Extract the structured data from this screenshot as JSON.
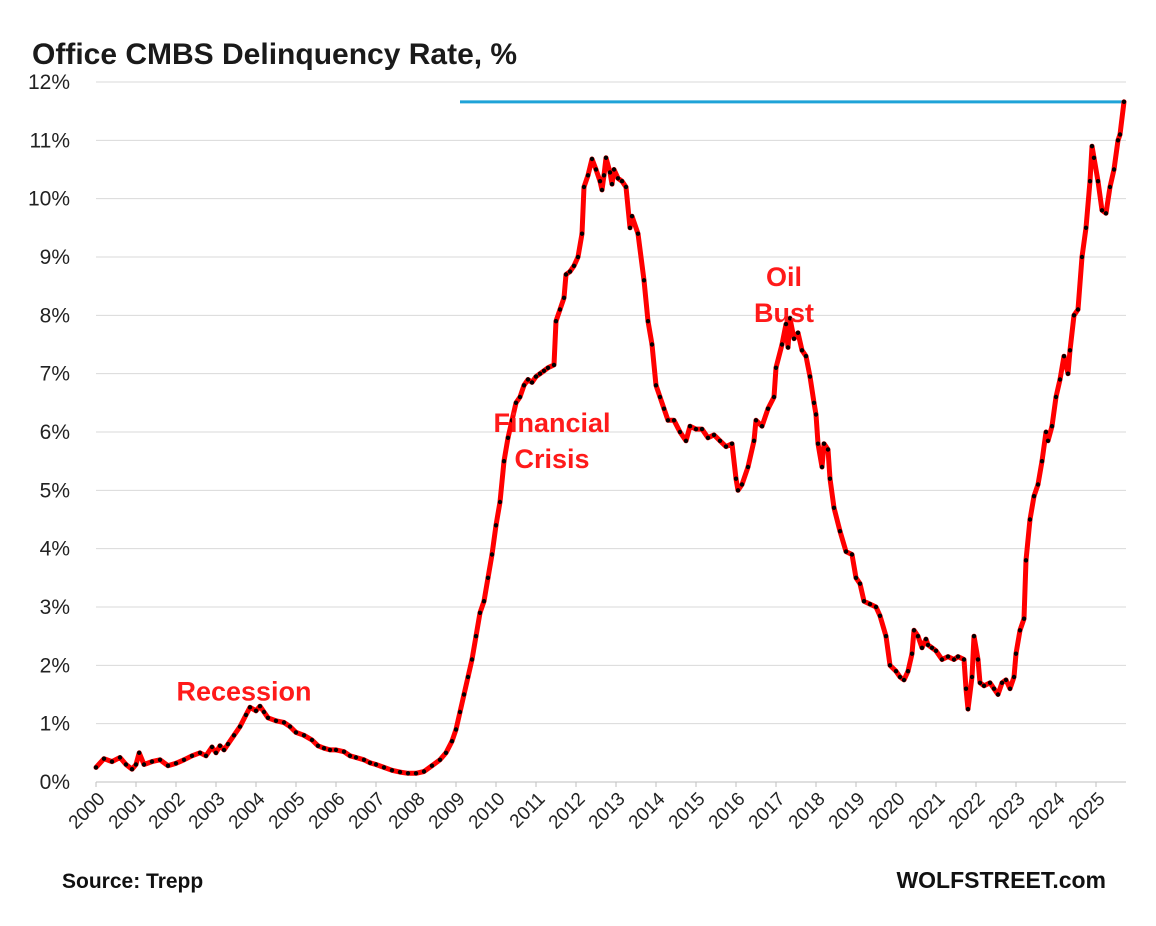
{
  "chart_data": {
    "type": "line",
    "title": "Office CMBS Delinquency Rate, %",
    "source": "Source: Trepp",
    "brand": "WOLFSTREET.com",
    "xlabel": "",
    "ylabel": "",
    "x_ticks": [
      "2000",
      "2001",
      "2002",
      "2003",
      "2004",
      "2005",
      "2006",
      "2007",
      "2008",
      "2009",
      "2010",
      "2011",
      "2012",
      "2013",
      "2014",
      "2015",
      "2016",
      "2017",
      "2018",
      "2019",
      "2020",
      "2021",
      "2022",
      "2023",
      "2024",
      "2025"
    ],
    "y_ticks": [
      "0%",
      "1%",
      "2%",
      "3%",
      "4%",
      "5%",
      "6%",
      "7%",
      "8%",
      "9%",
      "10%",
      "11%",
      "12%"
    ],
    "ylim": [
      0,
      12
    ],
    "xlim": [
      2000,
      2025.75
    ],
    "grid": true,
    "line_color": "#ff0000",
    "marker_color": "#000000",
    "reference_line": {
      "value": 11.66,
      "from_x": 2009.1,
      "to_x": 2025.7,
      "color": "#1fa3d8"
    },
    "annotations": [
      {
        "lines": [
          "Recession"
        ],
        "x": 2003.7,
        "y": 1.4
      },
      {
        "lines": [
          "Financial",
          "Crisis"
        ],
        "x": 2011.4,
        "y": 6.0
      },
      {
        "lines": [
          "Oil",
          "Bust"
        ],
        "x": 2017.2,
        "y": 8.5
      }
    ],
    "series": [
      {
        "points": [
          [
            2000.0,
            0.25
          ],
          [
            2000.2,
            0.4
          ],
          [
            2000.4,
            0.35
          ],
          [
            2000.6,
            0.42
          ],
          [
            2000.75,
            0.3
          ],
          [
            2000.9,
            0.22
          ],
          [
            2001.0,
            0.3
          ],
          [
            2001.08,
            0.5
          ],
          [
            2001.2,
            0.3
          ],
          [
            2001.4,
            0.35
          ],
          [
            2001.6,
            0.38
          ],
          [
            2001.8,
            0.28
          ],
          [
            2002.0,
            0.32
          ],
          [
            2002.2,
            0.38
          ],
          [
            2002.4,
            0.45
          ],
          [
            2002.6,
            0.5
          ],
          [
            2002.75,
            0.45
          ],
          [
            2002.9,
            0.6
          ],
          [
            2003.0,
            0.5
          ],
          [
            2003.1,
            0.62
          ],
          [
            2003.2,
            0.55
          ],
          [
            2003.3,
            0.65
          ],
          [
            2003.45,
            0.8
          ],
          [
            2003.6,
            0.95
          ],
          [
            2003.75,
            1.15
          ],
          [
            2003.85,
            1.28
          ],
          [
            2004.0,
            1.22
          ],
          [
            2004.1,
            1.3
          ],
          [
            2004.2,
            1.2
          ],
          [
            2004.3,
            1.1
          ],
          [
            2004.5,
            1.05
          ],
          [
            2004.7,
            1.02
          ],
          [
            2004.85,
            0.95
          ],
          [
            2005.0,
            0.85
          ],
          [
            2005.2,
            0.8
          ],
          [
            2005.4,
            0.72
          ],
          [
            2005.55,
            0.62
          ],
          [
            2005.7,
            0.58
          ],
          [
            2005.85,
            0.55
          ],
          [
            2006.0,
            0.55
          ],
          [
            2006.2,
            0.52
          ],
          [
            2006.35,
            0.45
          ],
          [
            2006.5,
            0.42
          ],
          [
            2006.7,
            0.38
          ],
          [
            2006.85,
            0.33
          ],
          [
            2007.0,
            0.3
          ],
          [
            2007.2,
            0.25
          ],
          [
            2007.4,
            0.2
          ],
          [
            2007.6,
            0.17
          ],
          [
            2007.8,
            0.15
          ],
          [
            2008.0,
            0.15
          ],
          [
            2008.2,
            0.18
          ],
          [
            2008.4,
            0.28
          ],
          [
            2008.6,
            0.38
          ],
          [
            2008.75,
            0.5
          ],
          [
            2008.9,
            0.7
          ],
          [
            2009.0,
            0.9
          ],
          [
            2009.1,
            1.2
          ],
          [
            2009.2,
            1.5
          ],
          [
            2009.3,
            1.8
          ],
          [
            2009.4,
            2.1
          ],
          [
            2009.5,
            2.5
          ],
          [
            2009.6,
            2.9
          ],
          [
            2009.7,
            3.1
          ],
          [
            2009.8,
            3.5
          ],
          [
            2009.9,
            3.9
          ],
          [
            2010.0,
            4.4
          ],
          [
            2010.1,
            4.8
          ],
          [
            2010.2,
            5.5
          ],
          [
            2010.3,
            5.9
          ],
          [
            2010.4,
            6.2
          ],
          [
            2010.5,
            6.5
          ],
          [
            2010.6,
            6.6
          ],
          [
            2010.7,
            6.8
          ],
          [
            2010.8,
            6.9
          ],
          [
            2010.9,
            6.85
          ],
          [
            2011.0,
            6.95
          ],
          [
            2011.1,
            7.0
          ],
          [
            2011.2,
            7.05
          ],
          [
            2011.3,
            7.1
          ],
          [
            2011.45,
            7.15
          ],
          [
            2011.5,
            7.9
          ],
          [
            2011.6,
            8.1
          ],
          [
            2011.7,
            8.3
          ],
          [
            2011.75,
            8.7
          ],
          [
            2011.85,
            8.75
          ],
          [
            2011.95,
            8.85
          ],
          [
            2012.05,
            9.0
          ],
          [
            2012.15,
            9.4
          ],
          [
            2012.2,
            10.2
          ],
          [
            2012.3,
            10.4
          ],
          [
            2012.4,
            10.68
          ],
          [
            2012.5,
            10.5
          ],
          [
            2012.6,
            10.3
          ],
          [
            2012.65,
            10.15
          ],
          [
            2012.7,
            10.4
          ],
          [
            2012.75,
            10.7
          ],
          [
            2012.85,
            10.45
          ],
          [
            2012.9,
            10.25
          ],
          [
            2012.95,
            10.5
          ],
          [
            2013.05,
            10.35
          ],
          [
            2013.15,
            10.3
          ],
          [
            2013.25,
            10.2
          ],
          [
            2013.35,
            9.5
          ],
          [
            2013.4,
            9.7
          ],
          [
            2013.55,
            9.4
          ],
          [
            2013.7,
            8.6
          ],
          [
            2013.8,
            7.9
          ],
          [
            2013.9,
            7.5
          ],
          [
            2014.0,
            6.8
          ],
          [
            2014.1,
            6.6
          ],
          [
            2014.2,
            6.4
          ],
          [
            2014.3,
            6.2
          ],
          [
            2014.45,
            6.2
          ],
          [
            2014.6,
            6.0
          ],
          [
            2014.75,
            5.85
          ],
          [
            2014.85,
            6.1
          ],
          [
            2015.0,
            6.05
          ],
          [
            2015.15,
            6.05
          ],
          [
            2015.3,
            5.9
          ],
          [
            2015.45,
            5.95
          ],
          [
            2015.6,
            5.85
          ],
          [
            2015.75,
            5.75
          ],
          [
            2015.9,
            5.8
          ],
          [
            2016.0,
            5.2
          ],
          [
            2016.05,
            5.0
          ],
          [
            2016.15,
            5.1
          ],
          [
            2016.3,
            5.4
          ],
          [
            2016.45,
            5.85
          ],
          [
            2016.5,
            6.2
          ],
          [
            2016.65,
            6.1
          ],
          [
            2016.8,
            6.4
          ],
          [
            2016.95,
            6.6
          ],
          [
            2017.0,
            7.1
          ],
          [
            2017.15,
            7.5
          ],
          [
            2017.25,
            7.85
          ],
          [
            2017.3,
            7.45
          ],
          [
            2017.35,
            7.95
          ],
          [
            2017.45,
            7.6
          ],
          [
            2017.55,
            7.7
          ],
          [
            2017.65,
            7.4
          ],
          [
            2017.75,
            7.3
          ],
          [
            2017.85,
            6.95
          ],
          [
            2017.95,
            6.5
          ],
          [
            2018.0,
            6.3
          ],
          [
            2018.05,
            5.8
          ],
          [
            2018.15,
            5.4
          ],
          [
            2018.2,
            5.8
          ],
          [
            2018.3,
            5.7
          ],
          [
            2018.35,
            5.2
          ],
          [
            2018.45,
            4.7
          ],
          [
            2018.6,
            4.3
          ],
          [
            2018.75,
            3.95
          ],
          [
            2018.9,
            3.9
          ],
          [
            2019.0,
            3.5
          ],
          [
            2019.1,
            3.4
          ],
          [
            2019.2,
            3.1
          ],
          [
            2019.35,
            3.05
          ],
          [
            2019.5,
            3.0
          ],
          [
            2019.6,
            2.85
          ],
          [
            2019.75,
            2.5
          ],
          [
            2019.85,
            2.0
          ],
          [
            2020.0,
            1.9
          ],
          [
            2020.1,
            1.8
          ],
          [
            2020.2,
            1.75
          ],
          [
            2020.3,
            1.9
          ],
          [
            2020.4,
            2.2
          ],
          [
            2020.45,
            2.6
          ],
          [
            2020.55,
            2.5
          ],
          [
            2020.65,
            2.3
          ],
          [
            2020.75,
            2.45
          ],
          [
            2020.8,
            2.35
          ],
          [
            2020.9,
            2.3
          ],
          [
            2021.0,
            2.25
          ],
          [
            2021.15,
            2.1
          ],
          [
            2021.3,
            2.15
          ],
          [
            2021.45,
            2.1
          ],
          [
            2021.55,
            2.15
          ],
          [
            2021.7,
            2.1
          ],
          [
            2021.75,
            1.6
          ],
          [
            2021.8,
            1.25
          ],
          [
            2021.9,
            1.8
          ],
          [
            2021.95,
            2.5
          ],
          [
            2022.05,
            2.1
          ],
          [
            2022.1,
            1.7
          ],
          [
            2022.2,
            1.65
          ],
          [
            2022.35,
            1.7
          ],
          [
            2022.45,
            1.6
          ],
          [
            2022.55,
            1.5
          ],
          [
            2022.65,
            1.7
          ],
          [
            2022.75,
            1.75
          ],
          [
            2022.85,
            1.6
          ],
          [
            2022.95,
            1.8
          ],
          [
            2023.0,
            2.2
          ],
          [
            2023.1,
            2.6
          ],
          [
            2023.2,
            2.8
          ],
          [
            2023.25,
            3.8
          ],
          [
            2023.35,
            4.5
          ],
          [
            2023.45,
            4.9
          ],
          [
            2023.55,
            5.1
          ],
          [
            2023.65,
            5.5
          ],
          [
            2023.75,
            6.0
          ],
          [
            2023.8,
            5.85
          ],
          [
            2023.9,
            6.1
          ],
          [
            2024.0,
            6.6
          ],
          [
            2024.1,
            6.9
          ],
          [
            2024.2,
            7.3
          ],
          [
            2024.3,
            7.0
          ],
          [
            2024.35,
            7.4
          ],
          [
            2024.45,
            8.0
          ],
          [
            2024.55,
            8.1
          ],
          [
            2024.65,
            9.0
          ],
          [
            2024.75,
            9.5
          ],
          [
            2024.85,
            10.3
          ],
          [
            2024.9,
            10.9
          ],
          [
            2024.95,
            10.7
          ],
          [
            2025.05,
            10.3
          ],
          [
            2025.15,
            9.8
          ],
          [
            2025.25,
            9.75
          ],
          [
            2025.35,
            10.2
          ],
          [
            2025.45,
            10.5
          ],
          [
            2025.55,
            11.0
          ],
          [
            2025.6,
            11.1
          ],
          [
            2025.7,
            11.66
          ]
        ]
      }
    ]
  }
}
